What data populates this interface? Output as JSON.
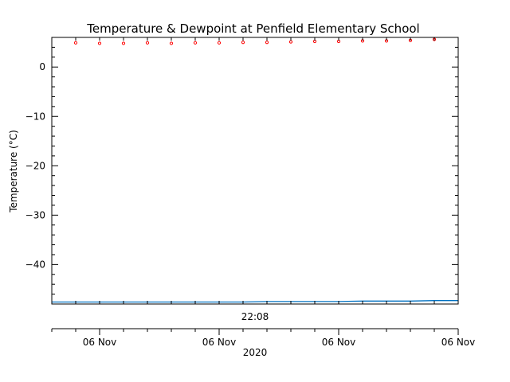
{
  "chart_data": {
    "type": "line",
    "title": "Temperature & Dewpoint at Penfield Elementary School",
    "ylabel": "Temperature (°C)",
    "ylim": [
      -48.0,
      6.0
    ],
    "yticks": [
      0,
      -10,
      -20,
      -30,
      -40
    ],
    "yticklabels": [
      "0",
      "−10",
      "−20",
      "−30",
      "−40"
    ],
    "x_inner_label": "22:08",
    "x_outer_ticklabels": [
      "06 Nov",
      "06 Nov",
      "06 Nov",
      "06 Nov"
    ],
    "x_outer_label": "2020",
    "xlim": [
      0,
      17
    ],
    "grid": false,
    "colors": {
      "temperature": "#ff0000",
      "dewpoint": "#0070c0",
      "axes": "#000000"
    },
    "series": [
      {
        "key": "temperature",
        "style": "markers",
        "x": [
          1,
          2,
          3,
          4,
          5,
          6,
          7,
          8,
          9,
          10,
          11,
          12,
          13,
          14,
          15,
          16
        ],
        "values": [
          4.9,
          4.8,
          4.8,
          4.9,
          4.8,
          4.9,
          4.9,
          5.0,
          5.0,
          5.1,
          5.2,
          5.2,
          5.3,
          5.3,
          5.4,
          5.6
        ]
      },
      {
        "key": "dewpoint",
        "style": "line",
        "x": [
          0,
          4,
          8,
          9,
          12,
          13,
          15,
          16,
          17
        ],
        "values": [
          -47.6,
          -47.6,
          -47.6,
          -47.5,
          -47.5,
          -47.4,
          -47.4,
          -47.3,
          -47.3
        ]
      }
    ]
  }
}
